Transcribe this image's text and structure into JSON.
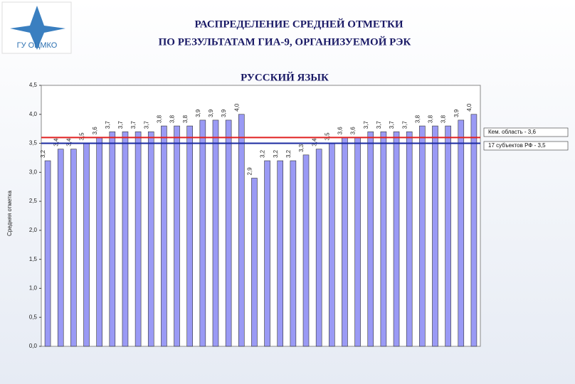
{
  "chart_data": {
    "type": "bar",
    "logo": "ГУ ОЦМКО",
    "title_lines": [
      "РАСПРЕДЕЛЕНИЕ СРЕДНЕЙ ОТМЕТКИ",
      "ПО РЕЗУЛЬТАТАМ ГИА-9, ОРГАНИЗУЕМОЙ РЭК"
    ],
    "subtitle": "РУССКИЙ ЯЗЫК",
    "y_label": "Средняя отметка",
    "categories": [
      null,
      null,
      null,
      null,
      null,
      null,
      null,
      null,
      null,
      null,
      null,
      null,
      null,
      null,
      null,
      null,
      null,
      null,
      null,
      null,
      null,
      null,
      null,
      null,
      null,
      null,
      null,
      null,
      null,
      null,
      null,
      null,
      null,
      null
    ],
    "values": [
      3.2,
      3.4,
      3.4,
      3.5,
      3.6,
      3.7,
      3.7,
      3.7,
      3.7,
      3.8,
      3.8,
      3.8,
      3.9,
      3.9,
      3.9,
      4.0,
      2.9,
      3.2,
      3.2,
      3.2,
      3.3,
      3.4,
      3.5,
      3.6,
      3.6,
      3.7,
      3.7,
      3.7,
      3.7,
      3.8,
      3.8,
      3.8,
      3.9,
      4.0
    ],
    "value_labels": [
      "3,2",
      "3,4",
      "3,4",
      "3,5",
      "3,6",
      "3,7",
      "3,7",
      "3,7",
      "3,7",
      "3,8",
      "3,8",
      "3,8",
      "3,9",
      "3,9",
      "3,9",
      "4,0",
      "2,9",
      "3,2",
      "3,2",
      "3,2",
      "3,3",
      "3,4",
      "3,5",
      "3,6",
      "3,6",
      "3,7",
      "3,7",
      "3,7",
      "3,7",
      "3,8",
      "3,8",
      "3,8",
      "3,9",
      "4,0"
    ],
    "color": "#9a9af5",
    "ylim": [
      0,
      4.5
    ],
    "yticks": [
      {
        "value": 0,
        "label": "0,0"
      },
      {
        "value": 0.5,
        "label": "0,5"
      },
      {
        "value": 1,
        "label": "1,0"
      },
      {
        "value": 1.5,
        "label": "1,5"
      },
      {
        "value": 2,
        "label": "2,0"
      },
      {
        "value": 2.5,
        "label": "2,5"
      },
      {
        "value": 3,
        "label": "3,0"
      },
      {
        "value": 3.5,
        "label": "3,5"
      },
      {
        "value": 4,
        "label": "4,0"
      },
      {
        "value": 4.5,
        "label": "4,5"
      }
    ],
    "reference_lines": [
      {
        "label": "Кем. область - 3,6",
        "value": 3.6,
        "color": "#e02020"
      },
      {
        "label": "17 субъектов РФ - 3,5",
        "value": 3.5,
        "color": "#1a2aa0"
      }
    ]
  }
}
